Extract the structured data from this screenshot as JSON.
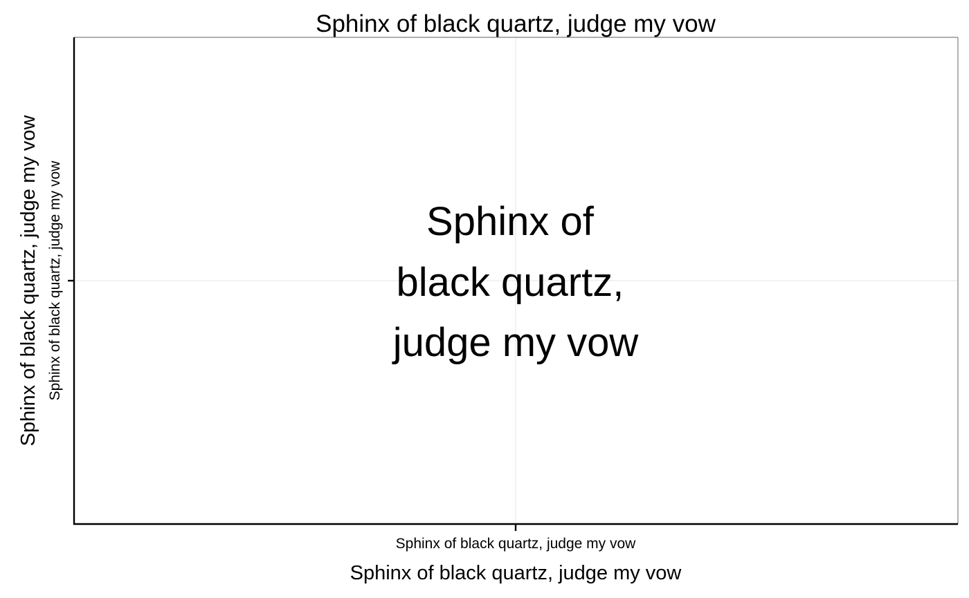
{
  "chart_data": {
    "type": "scatter",
    "title": "Sphinx of black quartz, judge my vow",
    "xlabel": "Sphinx of black quartz, judge my vow",
    "ylabel_outer": "Sphinx of black quartz, judge my vow",
    "ylabel_inner": "Sphinx of black quartz, judge my vow",
    "x_ticks": [
      "Sphinx of black quartz, judge my vow"
    ],
    "y_ticks": [
      ""
    ],
    "center_text": [
      "Sphinx of",
      "black quartz,",
      "judge my vow"
    ],
    "grid": true,
    "points": []
  },
  "colors": {
    "background": "#ffffff",
    "text": "#000000",
    "axis": "#000000",
    "panel_border": "#7f7f7f",
    "grid": "#e6e6e6"
  }
}
